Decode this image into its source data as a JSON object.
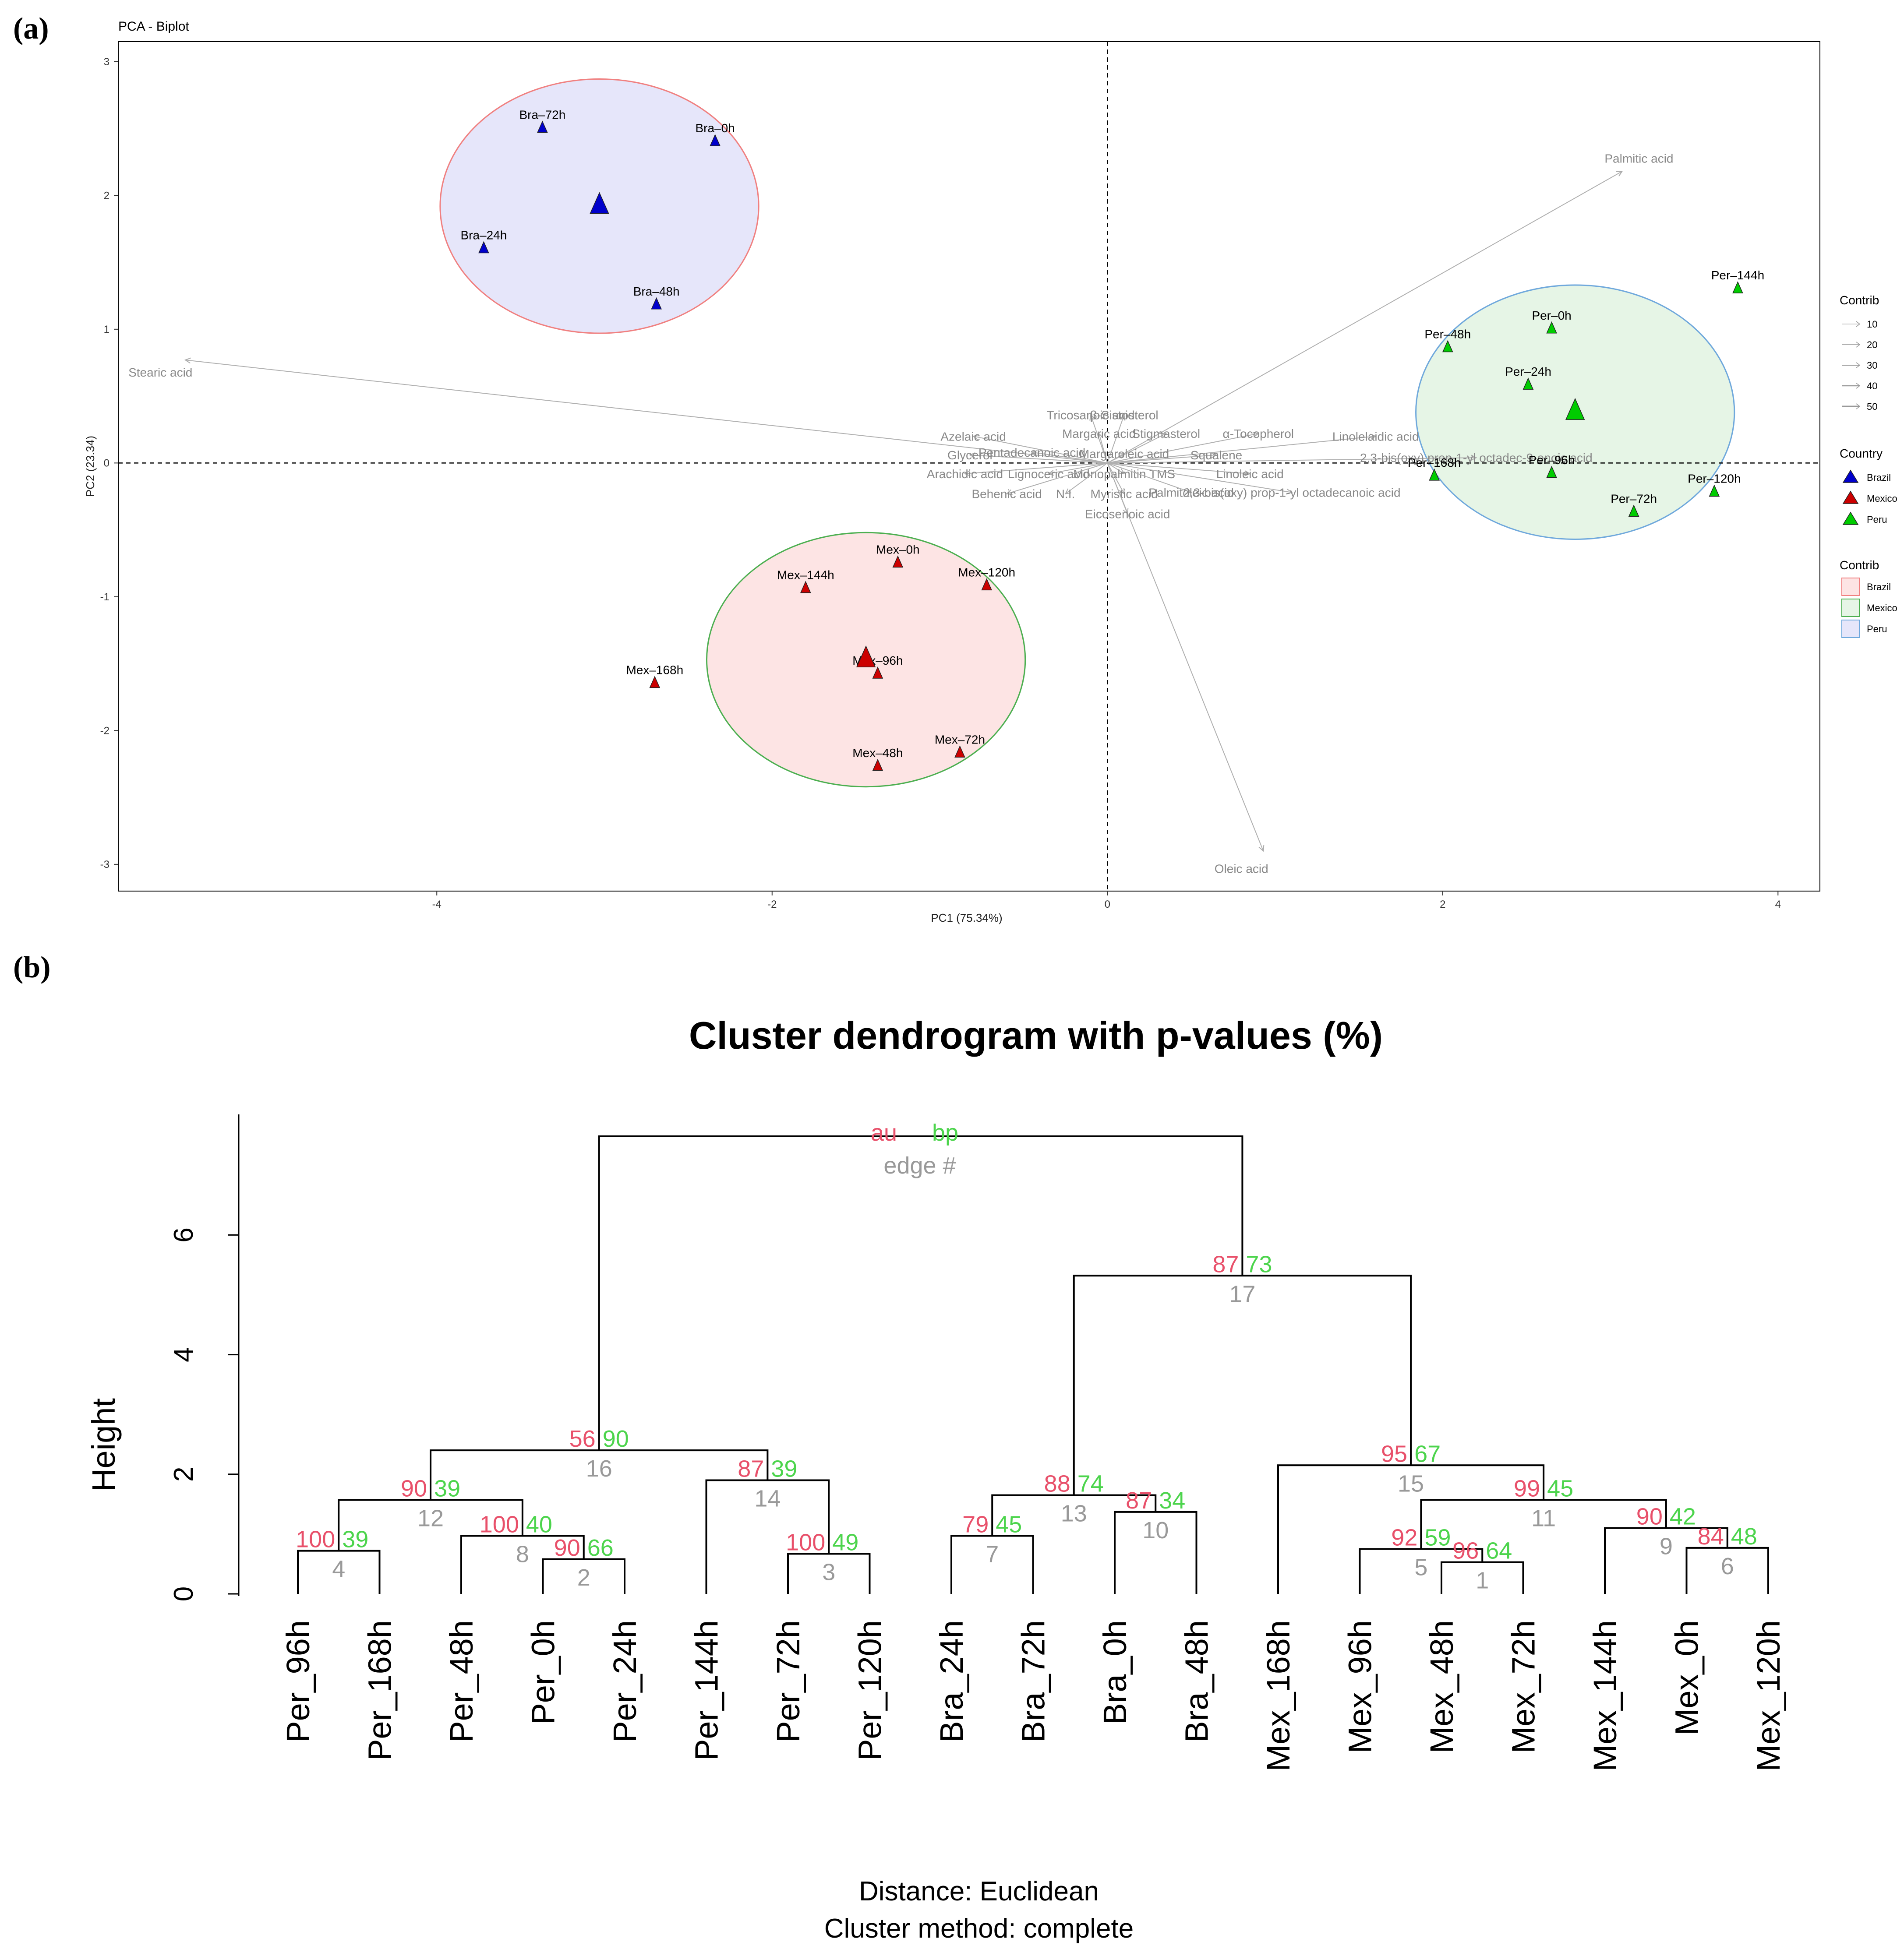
{
  "panel_a_label": "(a)",
  "panel_b_label": "(b)",
  "chart_data": [
    {
      "type": "scatter",
      "title": "PCA - Biplot",
      "xlabel": "PC1 (75.34%)",
      "ylabel": "PC2 (23.34)",
      "xlim": [
        -5.9,
        4.25
      ],
      "ylim": [
        -3.2,
        3.15
      ],
      "xticks": [
        -4,
        -2,
        0,
        2,
        4
      ],
      "yticks": [
        -3,
        -2,
        -1,
        0,
        1,
        2,
        3
      ],
      "groups": [
        {
          "name": "Brazil",
          "color": "#0000cc",
          "ellipse_fill": "#e6e6fa",
          "ellipse_stroke": "#f08080",
          "centroid": [
            -3.03,
            1.92
          ],
          "ellipse_center": [
            -3.03,
            1.92
          ],
          "ellipse_radii": [
            0.95,
            0.95
          ],
          "points": [
            {
              "label": "Bra–72h",
              "x": -3.37,
              "y": 2.5
            },
            {
              "label": "Bra–0h",
              "x": -2.34,
              "y": 2.4
            },
            {
              "label": "Bra–24h",
              "x": -3.72,
              "y": 1.6
            },
            {
              "label": "Bra–48h",
              "x": -2.69,
              "y": 1.18
            }
          ]
        },
        {
          "name": "Mexico",
          "color": "#cc0000",
          "ellipse_fill": "#fde4e4",
          "ellipse_stroke": "#4caf50",
          "centroid": [
            -1.44,
            -1.47
          ],
          "ellipse_center": [
            -1.44,
            -1.47
          ],
          "ellipse_radii": [
            0.95,
            0.95
          ],
          "points": [
            {
              "label": "Mex–0h",
              "x": -1.25,
              "y": -0.75
            },
            {
              "label": "Mex–120h",
              "x": -0.72,
              "y": -0.92
            },
            {
              "label": "Mex–144h",
              "x": -1.8,
              "y": -0.94
            },
            {
              "label": "Mex–96h",
              "x": -1.37,
              "y": -1.58
            },
            {
              "label": "Mex–168h",
              "x": -2.7,
              "y": -1.65
            },
            {
              "label": "Mex–48h",
              "x": -1.37,
              "y": -2.27
            },
            {
              "label": "Mex–72h",
              "x": -0.88,
              "y": -2.17
            }
          ]
        },
        {
          "name": "Peru",
          "color": "#00cc00",
          "ellipse_fill": "#e6f5e6",
          "ellipse_stroke": "#6fa8dc",
          "centroid": [
            2.79,
            0.38
          ],
          "ellipse_center": [
            2.79,
            0.38
          ],
          "ellipse_radii": [
            0.95,
            0.95
          ],
          "points": [
            {
              "label": "Per–144h",
              "x": 3.76,
              "y": 1.3
            },
            {
              "label": "Per–48h",
              "x": 2.03,
              "y": 0.86
            },
            {
              "label": "Per–0h",
              "x": 2.65,
              "y": 1.0
            },
            {
              "label": "Per–24h",
              "x": 2.51,
              "y": 0.58
            },
            {
              "label": "Per–96h",
              "x": 2.65,
              "y": -0.08
            },
            {
              "label": "Per–168h",
              "x": 1.95,
              "y": -0.1
            },
            {
              "label": "Per–120h",
              "x": 3.62,
              "y": -0.22
            },
            {
              "label": "Per–72h",
              "x": 3.14,
              "y": -0.37
            }
          ]
        }
      ],
      "variables": [
        {
          "label": "Palmitic acid",
          "x": 3.07,
          "y": 2.18
        },
        {
          "label": "Stearic acid",
          "x": -5.5,
          "y": 0.77
        },
        {
          "label": "Oleic acid",
          "x": 0.93,
          "y": -2.9
        },
        {
          "label": "Tricosanoic acid",
          "x": -0.1,
          "y": 0.36
        },
        {
          "label": "β-Sistosterol",
          "x": 0.1,
          "y": 0.36
        },
        {
          "label": "Margaric acid",
          "x": -0.05,
          "y": 0.22
        },
        {
          "label": "Stigmasterol",
          "x": 0.35,
          "y": 0.22
        },
        {
          "label": "α-Tocopherol",
          "x": 0.9,
          "y": 0.22
        },
        {
          "label": "Azelaic acid",
          "x": -0.8,
          "y": 0.2
        },
        {
          "label": "Linolelaidic acid",
          "x": 1.6,
          "y": 0.2
        },
        {
          "label": "Glycerol",
          "x": -0.82,
          "y": 0.06
        },
        {
          "label": "Pentadecanoic acid",
          "x": -0.45,
          "y": 0.08
        },
        {
          "label": "Margaroleic acid",
          "x": 0.1,
          "y": 0.07
        },
        {
          "label": "Squalene",
          "x": 0.65,
          "y": 0.06
        },
        {
          "label": "2,3-bis(oxy) prop-1-yl octadec-9-enoic acid",
          "x": 2.2,
          "y": 0.04
        },
        {
          "label": "Arachidic acid",
          "x": -0.85,
          "y": -0.08
        },
        {
          "label": "Lignoceric acid",
          "x": -0.35,
          "y": -0.08
        },
        {
          "label": "Monopalmitin TMS",
          "x": 0.1,
          "y": -0.08
        },
        {
          "label": "Linoleic acid",
          "x": 0.85,
          "y": -0.08
        },
        {
          "label": "Behenic acid",
          "x": -0.6,
          "y": -0.23
        },
        {
          "label": "N.I.",
          "x": -0.25,
          "y": -0.23
        },
        {
          "label": "Myristic acid",
          "x": 0.1,
          "y": -0.23
        },
        {
          "label": "Palmitoleic acid",
          "x": 0.5,
          "y": -0.22
        },
        {
          "label": "2,3-bis(oxy) prop-1-yl octadecanoic acid",
          "x": 1.1,
          "y": -0.22
        },
        {
          "label": "Eicosenoic acid",
          "x": 0.12,
          "y": -0.38
        }
      ],
      "legend": {
        "contrib_title": "Contrib",
        "contrib_values": [
          "10",
          "20",
          "30",
          "40",
          "50"
        ],
        "country_title": "Country",
        "countries": [
          "Brazil",
          "Mexico",
          "Peru"
        ],
        "contrib2_title": "Contrib",
        "contrib2_items": [
          "Brazil",
          "Mexico",
          "Peru"
        ],
        "contrib2_colors": [
          "#fde4e4",
          "#e6f5e6",
          "#e6e6fa"
        ],
        "contrib2_borders": [
          "#f08080",
          "#4caf50",
          "#6fa8dc"
        ]
      }
    },
    {
      "type": "dendrogram",
      "title": "Cluster dendrogram with p-values (%)",
      "ylabel": "Height",
      "ylim": [
        0,
        8.2
      ],
      "yticks": [
        0,
        2,
        4,
        6
      ],
      "legend_au": "au",
      "legend_bp": "bp",
      "legend_edge": "edge #",
      "footer_distance": "Distance: Euclidean",
      "footer_method": "Cluster method: complete",
      "leaves": [
        "Per_96h",
        "Per_168h",
        "Per_48h",
        "Per_0h",
        "Per_24h",
        "Per_144h",
        "Per_72h",
        "Per_120h",
        "Bra_24h",
        "Bra_72h",
        "Bra_0h",
        "Bra_48h",
        "Mex_168h",
        "Mex_96h",
        "Mex_48h",
        "Mex_72h",
        "Mex_144h",
        "Mex_0h",
        "Mex_120h"
      ],
      "merges": [
        {
          "id": "n4",
          "a": "Per_96h",
          "b": "Per_168h",
          "height": 0.72,
          "au": "100",
          "bp": "39",
          "edge": "4"
        },
        {
          "id": "n2",
          "a": "Per_0h",
          "b": "Per_24h",
          "height": 0.58,
          "au": "90",
          "bp": "66",
          "edge": "2"
        },
        {
          "id": "n8",
          "a": "Per_48h",
          "b": "n2",
          "height": 0.97,
          "au": "100",
          "bp": "40",
          "edge": "8"
        },
        {
          "id": "n12",
          "a": "n4",
          "b": "n8",
          "height": 1.57,
          "au": "90",
          "bp": "39",
          "edge": "12"
        },
        {
          "id": "n3",
          "a": "Per_72h",
          "b": "Per_120h",
          "height": 0.67,
          "au": "100",
          "bp": "49",
          "edge": "3"
        },
        {
          "id": "n14",
          "a": "Per_144h",
          "b": "n3",
          "height": 1.9,
          "au": "87",
          "bp": "39",
          "edge": "14"
        },
        {
          "id": "n16",
          "a": "n12",
          "b": "n14",
          "height": 2.4,
          "au": "56",
          "bp": "90",
          "edge": "16"
        },
        {
          "id": "n7",
          "a": "Bra_24h",
          "b": "Bra_72h",
          "height": 0.97,
          "au": "79",
          "bp": "45",
          "edge": "7"
        },
        {
          "id": "n10",
          "a": "Bra_0h",
          "b": "Bra_48h",
          "height": 1.37,
          "au": "87",
          "bp": "34",
          "edge": "10"
        },
        {
          "id": "n13",
          "a": "n7",
          "b": "n10",
          "height": 1.65,
          "au": "88",
          "bp": "74",
          "edge": "13"
        },
        {
          "id": "n1",
          "a": "Mex_48h",
          "b": "Mex_72h",
          "height": 0.53,
          "au": "96",
          "bp": "64",
          "edge": "1"
        },
        {
          "id": "n5",
          "a": "Mex_96h",
          "b": "n1",
          "height": 0.75,
          "au": "92",
          "bp": "59",
          "edge": "5"
        },
        {
          "id": "n6",
          "a": "Mex_0h",
          "b": "Mex_120h",
          "height": 0.77,
          "au": "84",
          "bp": "48",
          "edge": "6"
        },
        {
          "id": "n9",
          "a": "Mex_144h",
          "b": "n6",
          "height": 1.1,
          "au": "90",
          "bp": "42",
          "edge": "9"
        },
        {
          "id": "n11",
          "a": "n5",
          "b": "n9",
          "height": 1.57,
          "au": "99",
          "bp": "45",
          "edge": "11"
        },
        {
          "id": "n15",
          "a": "Mex_168h",
          "b": "n11",
          "height": 2.15,
          "au": "95",
          "bp": "67",
          "edge": "15"
        },
        {
          "id": "n17",
          "a": "n13",
          "b": "n15",
          "height": 5.32,
          "au": "87",
          "bp": "73",
          "edge": "17"
        },
        {
          "id": "root",
          "a": "n16",
          "b": "n17",
          "height": 7.65,
          "au": "",
          "bp": "",
          "edge": ""
        }
      ]
    }
  ]
}
